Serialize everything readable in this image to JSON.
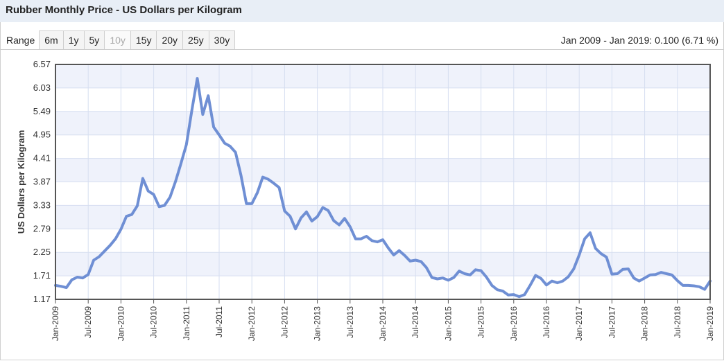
{
  "title": "Rubber Monthly Price - US Dollars per Kilogram",
  "range": {
    "label": "Range",
    "buttons": [
      {
        "label": "6m",
        "disabled": false
      },
      {
        "label": "1y",
        "disabled": false
      },
      {
        "label": "5y",
        "disabled": false
      },
      {
        "label": "10y",
        "disabled": true
      },
      {
        "label": "15y",
        "disabled": false
      },
      {
        "label": "20y",
        "disabled": false
      },
      {
        "label": "25y",
        "disabled": false
      },
      {
        "label": "30y",
        "disabled": false
      }
    ],
    "summary": "Jan 2009 - Jan 2019: 0.100 (6.71 %)"
  },
  "colors": {
    "line": "#6f8fd4",
    "band": "#eff2fb",
    "grid": "#d6def0",
    "frame": "#555555"
  },
  "chart_data": {
    "type": "line",
    "title": "Rubber Monthly Price - US Dollars per Kilogram",
    "xlabel": "",
    "ylabel": "US Dollars per Kilogram",
    "ylim": [
      1.17,
      6.57
    ],
    "yticks": [
      "6.57",
      "6.03",
      "5.49",
      "4.95",
      "4.41",
      "3.87",
      "3.33",
      "2.79",
      "2.25",
      "1.71",
      "1.17"
    ],
    "xticks": [
      "Jan-2009",
      "Jul-2009",
      "Jan-2010",
      "Jul-2010",
      "Jan-2011",
      "Jul-2011",
      "Jan-2012",
      "Jul-2012",
      "Jan-2013",
      "Jul-2013",
      "Jan-2014",
      "Jul-2014",
      "Jan-2015",
      "Jul-2015",
      "Jan-2016",
      "Jul-2016",
      "Jan-2017",
      "Jul-2017",
      "Jan-2018",
      "Jul-2018",
      "Jan-2019"
    ],
    "x_start": "Jan-2009",
    "x_months": 120,
    "series": [
      {
        "name": "Rubber",
        "values": [
          1.49,
          1.47,
          1.44,
          1.62,
          1.68,
          1.66,
          1.74,
          2.07,
          2.15,
          2.28,
          2.41,
          2.56,
          2.78,
          3.08,
          3.12,
          3.32,
          3.95,
          3.66,
          3.58,
          3.3,
          3.33,
          3.52,
          3.88,
          4.29,
          4.73,
          5.52,
          6.25,
          5.42,
          5.85,
          5.13,
          4.95,
          4.76,
          4.69,
          4.55,
          4.02,
          3.37,
          3.37,
          3.62,
          3.98,
          3.93,
          3.84,
          3.74,
          3.2,
          3.08,
          2.79,
          3.04,
          3.18,
          2.97,
          3.07,
          3.28,
          3.21,
          2.98,
          2.88,
          3.03,
          2.84,
          2.56,
          2.56,
          2.62,
          2.52,
          2.49,
          2.54,
          2.35,
          2.19,
          2.29,
          2.18,
          2.05,
          2.07,
          2.04,
          1.9,
          1.67,
          1.64,
          1.66,
          1.61,
          1.67,
          1.82,
          1.76,
          1.73,
          1.85,
          1.83,
          1.68,
          1.49,
          1.39,
          1.36,
          1.27,
          1.28,
          1.23,
          1.28,
          1.49,
          1.72,
          1.65,
          1.5,
          1.59,
          1.55,
          1.59,
          1.69,
          1.87,
          2.19,
          2.56,
          2.7,
          2.34,
          2.22,
          2.14,
          1.75,
          1.76,
          1.86,
          1.87,
          1.66,
          1.59,
          1.66,
          1.73,
          1.74,
          1.79,
          1.76,
          1.73,
          1.6,
          1.49,
          1.49,
          1.48,
          1.46,
          1.4,
          1.59
        ]
      }
    ]
  }
}
